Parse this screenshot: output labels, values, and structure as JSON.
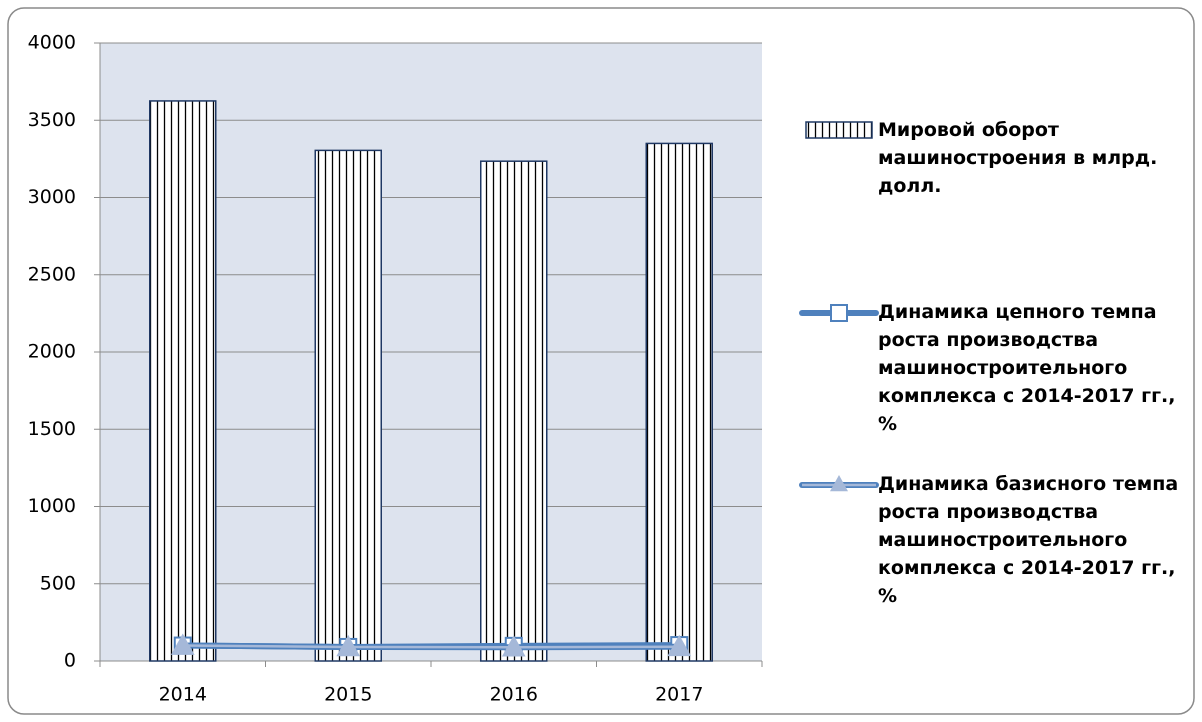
{
  "chart_data": {
    "type": "bar_line",
    "categories": [
      "2014",
      "2015",
      "2016",
      "2017"
    ],
    "series": [
      {
        "name": "Мировой оборот машиностроения в млрд. долл.",
        "type": "bar",
        "color": "#1f3864",
        "values": [
          3625,
          3305,
          3235,
          3350
        ]
      },
      {
        "name": "Динамика цепного темпа роста производства машиностроительного комплекса с 2014-2017 гг., %",
        "type": "line",
        "color": "#4f81bd",
        "values": [
          100,
          91,
          98,
          103
        ]
      },
      {
        "name": "Динамика базисного темпа роста производства машиностроительного комплекса с 2014-2017 гг., %",
        "type": "line",
        "color": "#a5b8d8",
        "values": [
          100,
          91,
          89,
          92
        ]
      }
    ],
    "ylim": [
      0,
      4000
    ],
    "yticks": [
      0,
      500,
      1000,
      1500,
      2000,
      2500,
      3000,
      3500,
      4000
    ],
    "grid": true,
    "legend": "right"
  }
}
